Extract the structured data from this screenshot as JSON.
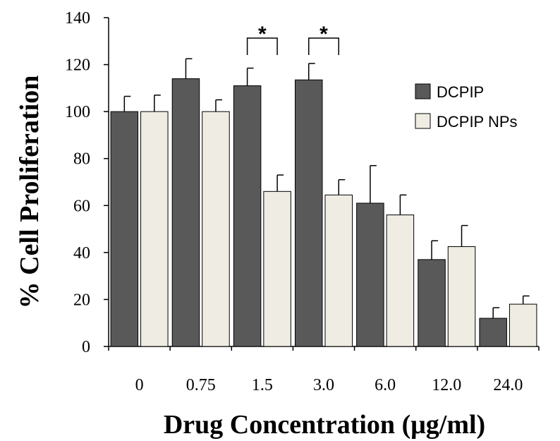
{
  "chart_data": {
    "type": "bar",
    "title": "",
    "xlabel": "Drug Concentration (μg/ml)",
    "ylabel": "% Cell Proliferation",
    "ylim": [
      0,
      140
    ],
    "yticks": [
      0,
      20,
      40,
      60,
      80,
      100,
      120,
      140
    ],
    "ytick_labels": [
      "0",
      "20",
      "40",
      "60",
      "80",
      "100",
      "120",
      "140"
    ],
    "categories": [
      "0",
      "0.75",
      "1.5",
      "3.0",
      "6.0",
      "12.0",
      "24.0"
    ],
    "series": [
      {
        "name": "DCPIP",
        "color": "#595959",
        "values": [
          100,
          114,
          111,
          113.5,
          61,
          37,
          12
        ],
        "errors": [
          6.5,
          8.5,
          7.5,
          7,
          16,
          8,
          4.5
        ]
      },
      {
        "name": "DCPIP NPs",
        "color": "#efede3",
        "values": [
          100,
          100,
          66,
          64.5,
          56,
          42.5,
          18
        ],
        "errors": [
          7,
          5,
          7,
          6.5,
          8.5,
          9,
          3.5
        ]
      }
    ],
    "legend": {
      "placement": "top-right",
      "entries": [
        "DCPIP",
        "DCPIP NPs"
      ]
    },
    "annotations": [
      {
        "text": "*",
        "category_index": 2
      },
      {
        "text": "*",
        "category_index": 3
      }
    ],
    "grid": false
  }
}
